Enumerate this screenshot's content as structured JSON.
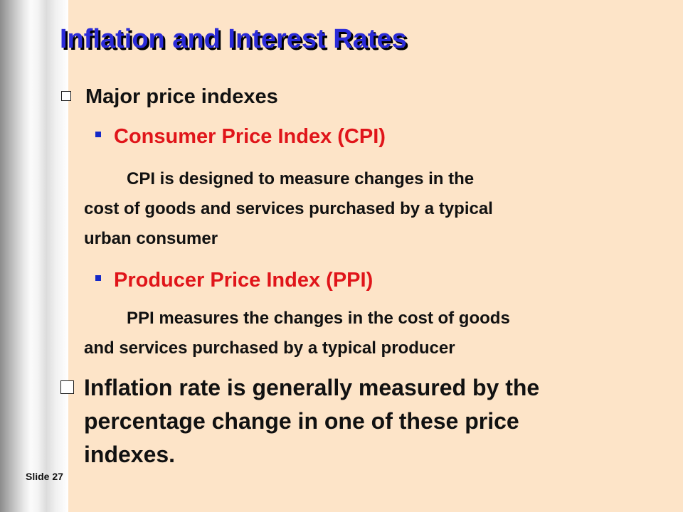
{
  "slide": {
    "title": "Inflation and Interest Rates",
    "bullet1": "Major price indexes",
    "sub1_title": "Consumer Price Index (CPI)",
    "sub1_line1": "CPI is designed to measure changes in the",
    "sub1_line2": "cost of goods and services purchased by a typical",
    "sub1_line3": "urban consumer",
    "sub2_title": "Producer Price Index (PPI)",
    "sub2_line1": "PPI measures the changes in the cost of goods",
    "sub2_line2": "and services purchased by a typical producer",
    "bullet2_line1": "Inflation rate is generally measured by the",
    "bullet2_line2": "percentage change in one of these price",
    "bullet2_line3": "indexes.",
    "slide_number": "Slide 27"
  },
  "colors": {
    "background": "#fde4c8",
    "title": "#2b2bd8",
    "subheading": "#e0151a",
    "square_bullet": "#1428c8"
  },
  "icons": {
    "hollow_bullet": "hollow-square-bullet-icon",
    "sub_bullet": "filled-square-bullet-icon"
  }
}
